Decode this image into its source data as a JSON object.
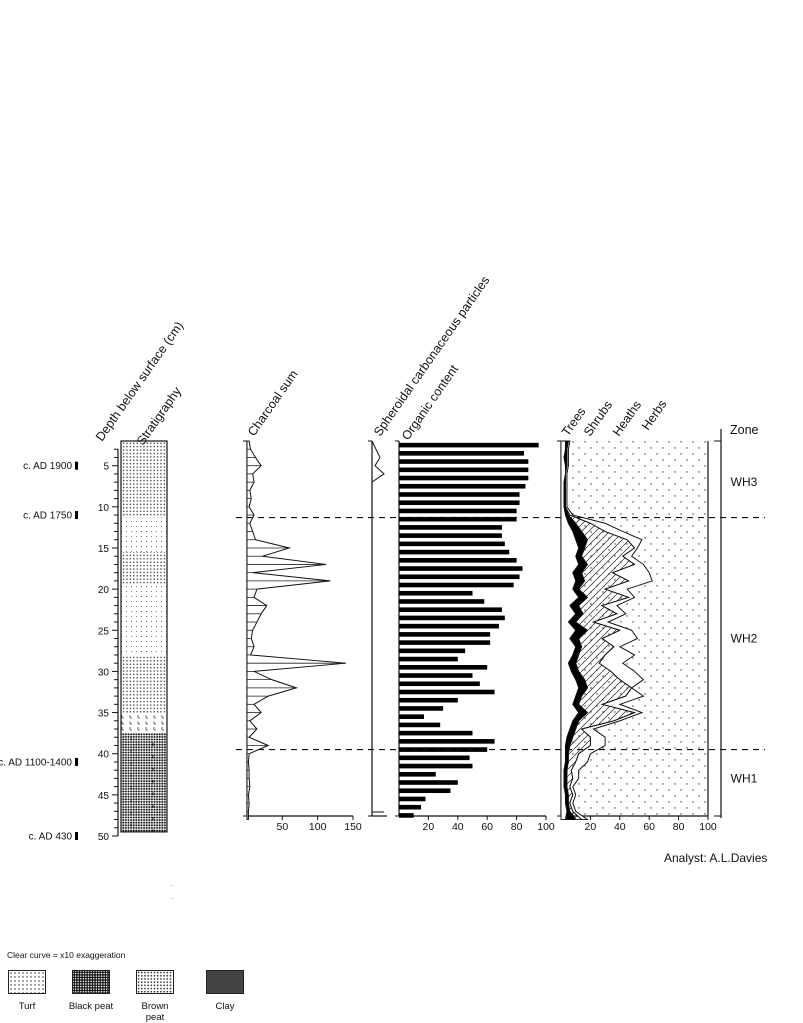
{
  "axis_labels": {
    "depth": "Depth below surface (cm)",
    "stratigraphy": "Stratigraphy",
    "charcoal": "Charcoal sum",
    "spheroidal": "Spheroidal carbonaceous particles",
    "organic": "Organic content",
    "trees": "Trees",
    "shrubs": "Shrubs",
    "heaths": "Heaths",
    "herbs": "Herbs",
    "zone": "Zone"
  },
  "dates": [
    {
      "label": "c. AD 1900",
      "depth": 5
    },
    {
      "label": "c. AD 1750",
      "depth": 11
    },
    {
      "label": "c. AD 1100-1400",
      "depth": 41
    },
    {
      "label": "c. AD 430",
      "depth": 50
    }
  ],
  "zones": [
    {
      "label": "WH3",
      "depth": 7
    },
    {
      "label": "WH2",
      "depth": 26
    },
    {
      "label": "WH1",
      "depth": 43
    }
  ],
  "zone_boundaries": [
    11.3,
    39.5
  ],
  "analyst": "Analyst: A.L.Davies",
  "legend": {
    "note": "Clear curve = x10 exaggeration",
    "items": [
      {
        "label": "Turf",
        "pattern": "turf"
      },
      {
        "label": "Black peat",
        "pattern": "black"
      },
      {
        "label": "Brown peat",
        "pattern": "brown"
      },
      {
        "label": "Clay",
        "pattern": "clay"
      }
    ]
  },
  "chart_data": {
    "type": "area",
    "depth_axis": {
      "ylim": [
        2,
        50
      ],
      "ticks": [
        5,
        10,
        15,
        20,
        25,
        30,
        35,
        40,
        45,
        50
      ],
      "label": "Depth below surface (cm)"
    },
    "stratigraphy": [
      {
        "from": 2,
        "to": 11.3,
        "type": "brown"
      },
      {
        "from": 11.3,
        "to": 15.5,
        "type": "turf"
      },
      {
        "from": 15.5,
        "to": 19.5,
        "type": "brown"
      },
      {
        "from": 19.5,
        "to": 28,
        "type": "turf"
      },
      {
        "from": 28,
        "to": 35,
        "type": "brown"
      },
      {
        "from": 35,
        "to": 37.5,
        "type": "clay"
      },
      {
        "from": 37.5,
        "to": 49.5,
        "type": "black"
      }
    ],
    "charcoal": {
      "xlim": [
        0,
        150
      ],
      "ticks": [
        50,
        100,
        150
      ],
      "depth": [
        2,
        3,
        4,
        5,
        6,
        7,
        8,
        9,
        10,
        11,
        12,
        13,
        14,
        15,
        16,
        17,
        18,
        19,
        20,
        21,
        22,
        23,
        24,
        25,
        26,
        27,
        28,
        29,
        30,
        31,
        32,
        33,
        34,
        35,
        36,
        37,
        38,
        39,
        40,
        41,
        42,
        43,
        44,
        45,
        46,
        47,
        48
      ],
      "values": [
        3,
        5,
        12,
        20,
        8,
        10,
        4,
        6,
        3,
        10,
        4,
        8,
        12,
        60,
        22,
        112,
        8,
        118,
        14,
        10,
        28,
        20,
        14,
        8,
        6,
        10,
        5,
        140,
        10,
        35,
        70,
        30,
        10,
        20,
        4,
        14,
        3,
        30,
        3,
        2,
        3,
        3,
        4,
        2,
        3,
        2,
        2
      ]
    },
    "spheroidal": {
      "xlim": [
        0,
        15
      ],
      "depth": [
        2,
        3,
        4,
        5,
        6,
        7
      ],
      "values": [
        0,
        4,
        8,
        3,
        12,
        0
      ]
    },
    "organic": {
      "xlim": [
        0,
        100
      ],
      "ticks": [
        20,
        40,
        60,
        80,
        100
      ],
      "depth": [
        2.5,
        3.5,
        4.5,
        5.5,
        6.5,
        7.5,
        8.5,
        9.5,
        10.5,
        11.5,
        12.5,
        13.5,
        14.5,
        15.5,
        16.5,
        17.5,
        18.5,
        19.5,
        20.5,
        21.5,
        22.5,
        23.5,
        24.5,
        25.5,
        26.5,
        27.5,
        28.5,
        29.5,
        30.5,
        31.5,
        32.5,
        33.5,
        34.5,
        35.5,
        36.5,
        37.5,
        38.5,
        39.5,
        40.5,
        41.5,
        42.5,
        43.5,
        44.5,
        45.5,
        46.5,
        47.5
      ],
      "values": [
        95,
        85,
        88,
        88,
        88,
        86,
        82,
        82,
        80,
        80,
        70,
        70,
        72,
        75,
        80,
        84,
        82,
        78,
        50,
        58,
        70,
        72,
        68,
        62,
        62,
        45,
        40,
        60,
        50,
        55,
        65,
        40,
        30,
        17,
        28,
        50,
        65,
        60,
        48,
        50,
        25,
        40,
        35,
        18,
        15,
        10
      ]
    },
    "pollen": {
      "xlim": [
        0,
        100
      ],
      "ticks": [
        20,
        40,
        60,
        80,
        100
      ],
      "depth": [
        2,
        3,
        4,
        5,
        6,
        7,
        8,
        9,
        10,
        11,
        12,
        13,
        14,
        15,
        16,
        17,
        18,
        19,
        20,
        21,
        22,
        23,
        24,
        25,
        26,
        27,
        28,
        29,
        30,
        31,
        32,
        33,
        34,
        35,
        36,
        37,
        38,
        39,
        40,
        41,
        42,
        43,
        44,
        45,
        46,
        47,
        48
      ],
      "trees": [
        3,
        3,
        2,
        3,
        3,
        2,
        2,
        2,
        2,
        3,
        5,
        8,
        10,
        12,
        10,
        12,
        8,
        10,
        8,
        12,
        6,
        10,
        5,
        10,
        6,
        10,
        8,
        5,
        7,
        10,
        12,
        10,
        8,
        12,
        8,
        6,
        4,
        3,
        3,
        3,
        2,
        2,
        2,
        3,
        3,
        4,
        3
      ],
      "shrubs": [
        5,
        4,
        4,
        4,
        3,
        3,
        3,
        3,
        3,
        5,
        10,
        14,
        18,
        16,
        14,
        18,
        14,
        16,
        12,
        18,
        12,
        15,
        10,
        18,
        12,
        14,
        12,
        10,
        12,
        16,
        18,
        14,
        12,
        18,
        12,
        10,
        8,
        6,
        5,
        5,
        4,
        4,
        4,
        5,
        5,
        6,
        10
      ],
      "heaths": [
        5,
        4,
        4,
        4,
        3,
        3,
        3,
        3,
        3,
        6,
        20,
        30,
        45,
        50,
        42,
        50,
        35,
        46,
        30,
        46,
        28,
        38,
        22,
        40,
        28,
        36,
        30,
        26,
        34,
        40,
        48,
        44,
        28,
        50,
        36,
        14,
        20,
        20,
        12,
        10,
        7,
        8,
        6,
        8,
        6,
        8,
        14
      ],
      "herbs": [
        6,
        5,
        5,
        5,
        4,
        4,
        4,
        4,
        4,
        8,
        30,
        42,
        55,
        52,
        48,
        56,
        60,
        62,
        45,
        50,
        38,
        44,
        32,
        48,
        52,
        40,
        50,
        42,
        50,
        56,
        48,
        56,
        40,
        55,
        40,
        22,
        30,
        30,
        20,
        18,
        12,
        12,
        8,
        10,
        8,
        10,
        18
      ]
    }
  }
}
